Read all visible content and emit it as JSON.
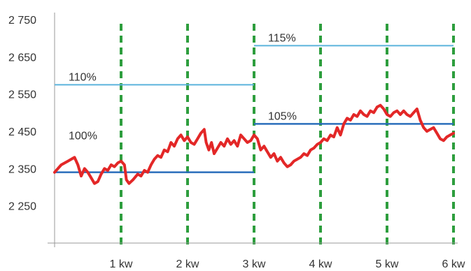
{
  "chart_data": {
    "type": "line",
    "title": "",
    "xlabel": "",
    "ylabel": "",
    "xlim": [
      0,
      6
    ],
    "ylim": [
      2150,
      2750
    ],
    "y_ticks": [
      2250,
      2350,
      2450,
      2550,
      2650,
      2750
    ],
    "y_tick_labels": [
      "2 250",
      "2 350",
      "2 450",
      "2 550",
      "2 650",
      "2 750"
    ],
    "x_ticks": [
      1,
      2,
      3,
      4,
      5,
      6
    ],
    "x_tick_labels": [
      "1 kw",
      "2 kw",
      "3 kw",
      "4 kw",
      "5 kw",
      "6 kw"
    ],
    "grid": "vertical dashed at x ticks",
    "colors": {
      "series": "#e32727",
      "baseline": "#2a6ebb",
      "threshold": "#5bb3dc",
      "gridline": "#2e9e3e",
      "axis": "#999999"
    },
    "series": [
      {
        "values": [
          [
            0.0,
            2340
          ],
          [
            0.1,
            2360
          ],
          [
            0.2,
            2370
          ],
          [
            0.3,
            2380
          ],
          [
            0.35,
            2360
          ],
          [
            0.4,
            2330
          ],
          [
            0.45,
            2350
          ],
          [
            0.5,
            2340
          ],
          [
            0.55,
            2325
          ],
          [
            0.6,
            2310
          ],
          [
            0.65,
            2315
          ],
          [
            0.7,
            2335
          ],
          [
            0.75,
            2350
          ],
          [
            0.8,
            2345
          ],
          [
            0.85,
            2360
          ],
          [
            0.9,
            2355
          ],
          [
            0.95,
            2365
          ],
          [
            1.0,
            2370
          ],
          [
            1.05,
            2360
          ],
          [
            1.08,
            2320
          ],
          [
            1.12,
            2310
          ],
          [
            1.18,
            2320
          ],
          [
            1.25,
            2335
          ],
          [
            1.3,
            2330
          ],
          [
            1.35,
            2345
          ],
          [
            1.4,
            2340
          ],
          [
            1.45,
            2360
          ],
          [
            1.5,
            2375
          ],
          [
            1.55,
            2385
          ],
          [
            1.6,
            2380
          ],
          [
            1.65,
            2400
          ],
          [
            1.7,
            2395
          ],
          [
            1.75,
            2420
          ],
          [
            1.8,
            2410
          ],
          [
            1.85,
            2430
          ],
          [
            1.9,
            2440
          ],
          [
            1.95,
            2425
          ],
          [
            2.0,
            2435
          ],
          [
            2.05,
            2420
          ],
          [
            2.1,
            2415
          ],
          [
            2.15,
            2430
          ],
          [
            2.2,
            2445
          ],
          [
            2.25,
            2455
          ],
          [
            2.28,
            2420
          ],
          [
            2.32,
            2400
          ],
          [
            2.36,
            2420
          ],
          [
            2.4,
            2390
          ],
          [
            2.45,
            2405
          ],
          [
            2.5,
            2420
          ],
          [
            2.55,
            2410
          ],
          [
            2.6,
            2430
          ],
          [
            2.65,
            2415
          ],
          [
            2.7,
            2425
          ],
          [
            2.75,
            2410
          ],
          [
            2.8,
            2440
          ],
          [
            2.85,
            2430
          ],
          [
            2.9,
            2420
          ],
          [
            2.95,
            2425
          ],
          [
            3.0,
            2440
          ],
          [
            3.05,
            2430
          ],
          [
            3.1,
            2400
          ],
          [
            3.15,
            2410
          ],
          [
            3.2,
            2395
          ],
          [
            3.25,
            2380
          ],
          [
            3.3,
            2390
          ],
          [
            3.35,
            2370
          ],
          [
            3.4,
            2380
          ],
          [
            3.45,
            2365
          ],
          [
            3.5,
            2355
          ],
          [
            3.55,
            2360
          ],
          [
            3.6,
            2370
          ],
          [
            3.65,
            2375
          ],
          [
            3.7,
            2380
          ],
          [
            3.75,
            2390
          ],
          [
            3.8,
            2385
          ],
          [
            3.85,
            2400
          ],
          [
            3.9,
            2405
          ],
          [
            3.95,
            2415
          ],
          [
            4.0,
            2420
          ],
          [
            4.05,
            2430
          ],
          [
            4.1,
            2425
          ],
          [
            4.15,
            2440
          ],
          [
            4.2,
            2435
          ],
          [
            4.25,
            2460
          ],
          [
            4.3,
            2440
          ],
          [
            4.35,
            2470
          ],
          [
            4.4,
            2485
          ],
          [
            4.45,
            2480
          ],
          [
            4.5,
            2495
          ],
          [
            4.55,
            2490
          ],
          [
            4.6,
            2505
          ],
          [
            4.65,
            2495
          ],
          [
            4.7,
            2490
          ],
          [
            4.75,
            2505
          ],
          [
            4.8,
            2500
          ],
          [
            4.85,
            2515
          ],
          [
            4.9,
            2520
          ],
          [
            4.95,
            2510
          ],
          [
            5.0,
            2495
          ],
          [
            5.05,
            2490
          ],
          [
            5.1,
            2500
          ],
          [
            5.15,
            2505
          ],
          [
            5.2,
            2495
          ],
          [
            5.25,
            2505
          ],
          [
            5.3,
            2495
          ],
          [
            5.35,
            2490
          ],
          [
            5.4,
            2500
          ],
          [
            5.45,
            2510
          ],
          [
            5.5,
            2480
          ],
          [
            5.55,
            2460
          ],
          [
            5.6,
            2450
          ],
          [
            5.65,
            2455
          ],
          [
            5.7,
            2460
          ],
          [
            5.75,
            2445
          ],
          [
            5.8,
            2430
          ],
          [
            5.85,
            2425
          ],
          [
            5.9,
            2435
          ],
          [
            5.95,
            2440
          ],
          [
            6.0,
            2445
          ]
        ]
      }
    ],
    "horizontal_lines": [
      {
        "label": "100%",
        "y": 2340,
        "x_start": 0,
        "x_end": 3,
        "style": "baseline"
      },
      {
        "label": "110%",
        "y": 2575,
        "x_start": 0,
        "x_end": 3,
        "style": "threshold"
      },
      {
        "label": "105%",
        "y": 2470,
        "x_start": 3,
        "x_end": 6,
        "style": "baseline"
      },
      {
        "label": "115%",
        "y": 2680,
        "x_start": 3,
        "x_end": 6,
        "style": "threshold"
      }
    ]
  }
}
